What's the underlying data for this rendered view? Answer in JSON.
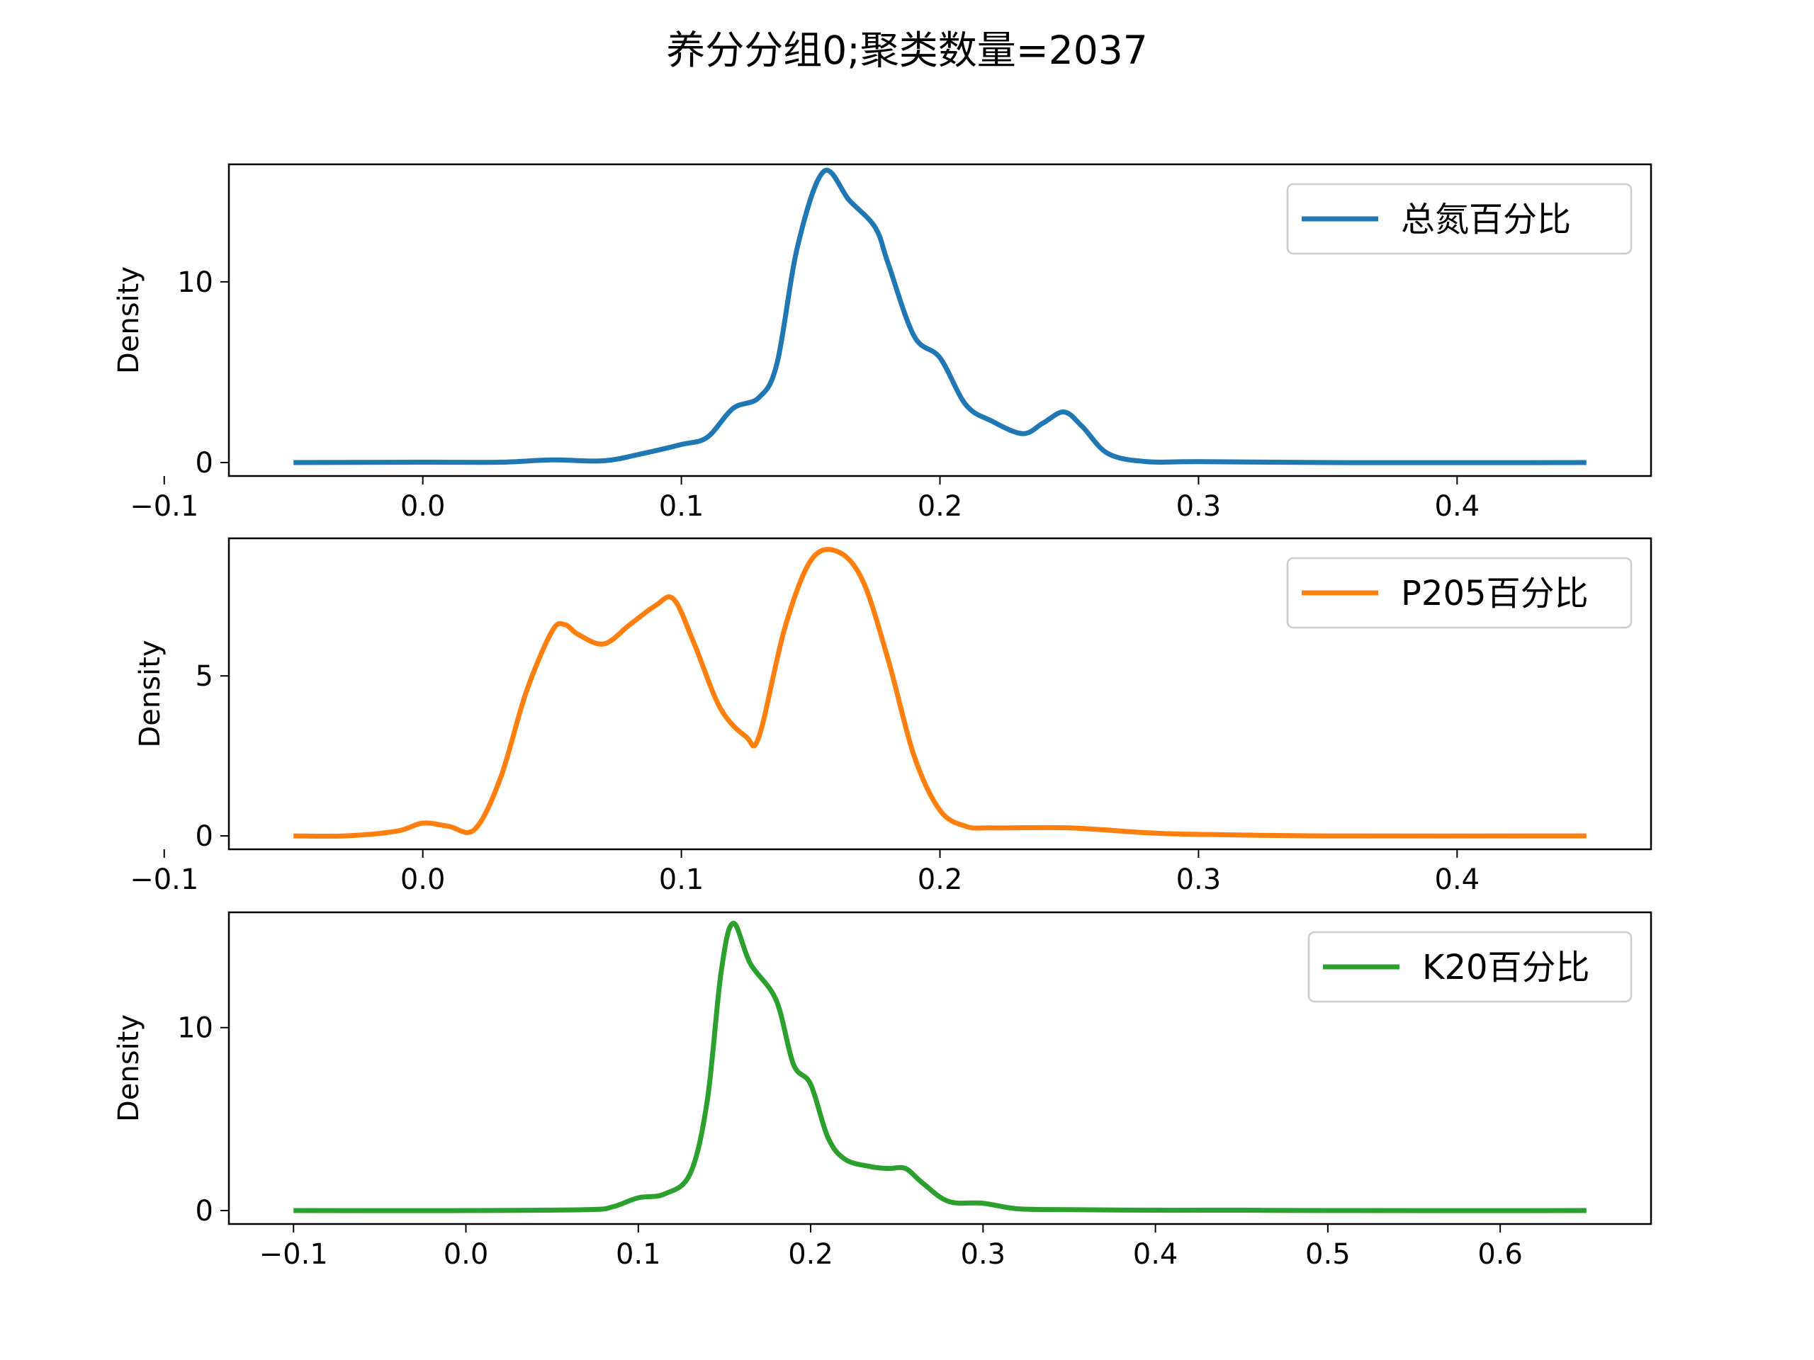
{
  "chart_data": {
    "type": "line",
    "title": "养分分组0;聚类数量=2037",
    "subplots": [
      {
        "ylabel": "Density",
        "xlim": [
          -0.1,
          0.45
        ],
        "ylim": [
          0,
          16.5
        ],
        "xticks": [
          -0.1,
          0.0,
          0.1,
          0.2,
          0.3,
          0.4
        ],
        "xtick_labels": [
          "-0.1",
          "0.0",
          "0.1",
          "0.2",
          "0.3",
          "0.4"
        ],
        "yticks": [
          0,
          10
        ],
        "ytick_labels": [
          "0",
          "10"
        ],
        "legend": "top-right",
        "series": [
          {
            "name": "总氮百分比",
            "color": "#1f77b4",
            "x": [
              -0.05,
              0.0,
              0.03,
              0.05,
              0.07,
              0.085,
              0.1,
              0.11,
              0.12,
              0.13,
              0.137,
              0.145,
              0.155,
              0.165,
              0.175,
              0.18,
              0.19,
              0.2,
              0.21,
              0.22,
              0.232,
              0.24,
              0.248,
              0.255,
              0.265,
              0.28,
              0.3,
              0.35,
              0.45
            ],
            "y": [
              0.0,
              0.02,
              0.02,
              0.15,
              0.1,
              0.5,
              1.0,
              1.4,
              3.0,
              3.6,
              5.5,
              12.0,
              16.1,
              14.5,
              13.0,
              11.0,
              7.0,
              5.8,
              3.2,
              2.3,
              1.6,
              2.2,
              2.8,
              2.0,
              0.5,
              0.05,
              0.05,
              0.0,
              0.0
            ]
          }
        ]
      },
      {
        "ylabel": "Density",
        "xlim": [
          -0.1,
          0.45
        ],
        "ylim": [
          0,
          9.3
        ],
        "xticks": [
          -0.1,
          0.0,
          0.1,
          0.2,
          0.3,
          0.4
        ],
        "xtick_labels": [
          "-0.1",
          "0.0",
          "0.1",
          "0.2",
          "0.3",
          "0.4"
        ],
        "yticks": [
          0,
          5
        ],
        "ytick_labels": [
          "0",
          "5"
        ],
        "legend": "top-right",
        "series": [
          {
            "name": "P205百分比",
            "color": "#ff7f0e",
            "x": [
              -0.05,
              -0.03,
              -0.01,
              0.0,
              0.01,
              0.02,
              0.03,
              0.04,
              0.05,
              0.055,
              0.06,
              0.07,
              0.08,
              0.09,
              0.097,
              0.105,
              0.115,
              0.125,
              0.13,
              0.14,
              0.15,
              0.16,
              0.17,
              0.18,
              0.19,
              0.2,
              0.21,
              0.22,
              0.25,
              0.28,
              0.3,
              0.35,
              0.45
            ],
            "y": [
              0.0,
              0.0,
              0.15,
              0.4,
              0.3,
              0.2,
              1.8,
              4.5,
              6.4,
              6.6,
              6.3,
              6.0,
              6.6,
              7.2,
              7.4,
              6.0,
              4.0,
              3.1,
              3.1,
              6.5,
              8.6,
              8.9,
              8.0,
              5.5,
              2.5,
              0.8,
              0.3,
              0.25,
              0.25,
              0.1,
              0.05,
              0.0,
              0.0
            ]
          }
        ]
      },
      {
        "ylabel": "Density",
        "xlim": [
          -0.15,
          0.69
        ],
        "ylim": [
          0,
          16.3
        ],
        "xticks": [
          -0.1,
          0.0,
          0.1,
          0.2,
          0.3,
          0.4,
          0.5,
          0.6
        ],
        "xtick_labels": [
          "-0.1",
          "0.0",
          "0.1",
          "0.2",
          "0.3",
          "0.4",
          "0.5",
          "0.6"
        ],
        "yticks": [
          0,
          10
        ],
        "ytick_labels": [
          "0",
          "10"
        ],
        "legend": "top-right",
        "series": [
          {
            "name": "K20百分比",
            "color": "#2ca02c",
            "x": [
              -0.1,
              0.0,
              0.07,
              0.085,
              0.1,
              0.115,
              0.13,
              0.14,
              0.148,
              0.155,
              0.165,
              0.18,
              0.19,
              0.2,
              0.21,
              0.22,
              0.235,
              0.245,
              0.255,
              0.265,
              0.28,
              0.3,
              0.32,
              0.35,
              0.4,
              0.45,
              0.5,
              0.65
            ],
            "y": [
              0.0,
              0.0,
              0.05,
              0.2,
              0.7,
              0.9,
              2.0,
              6.0,
              13.0,
              15.7,
              13.5,
              11.5,
              8.0,
              6.9,
              4.0,
              2.8,
              2.4,
              2.3,
              2.3,
              1.5,
              0.5,
              0.4,
              0.1,
              0.05,
              0.02,
              0.02,
              0.0,
              0.0
            ]
          }
        ]
      }
    ]
  }
}
